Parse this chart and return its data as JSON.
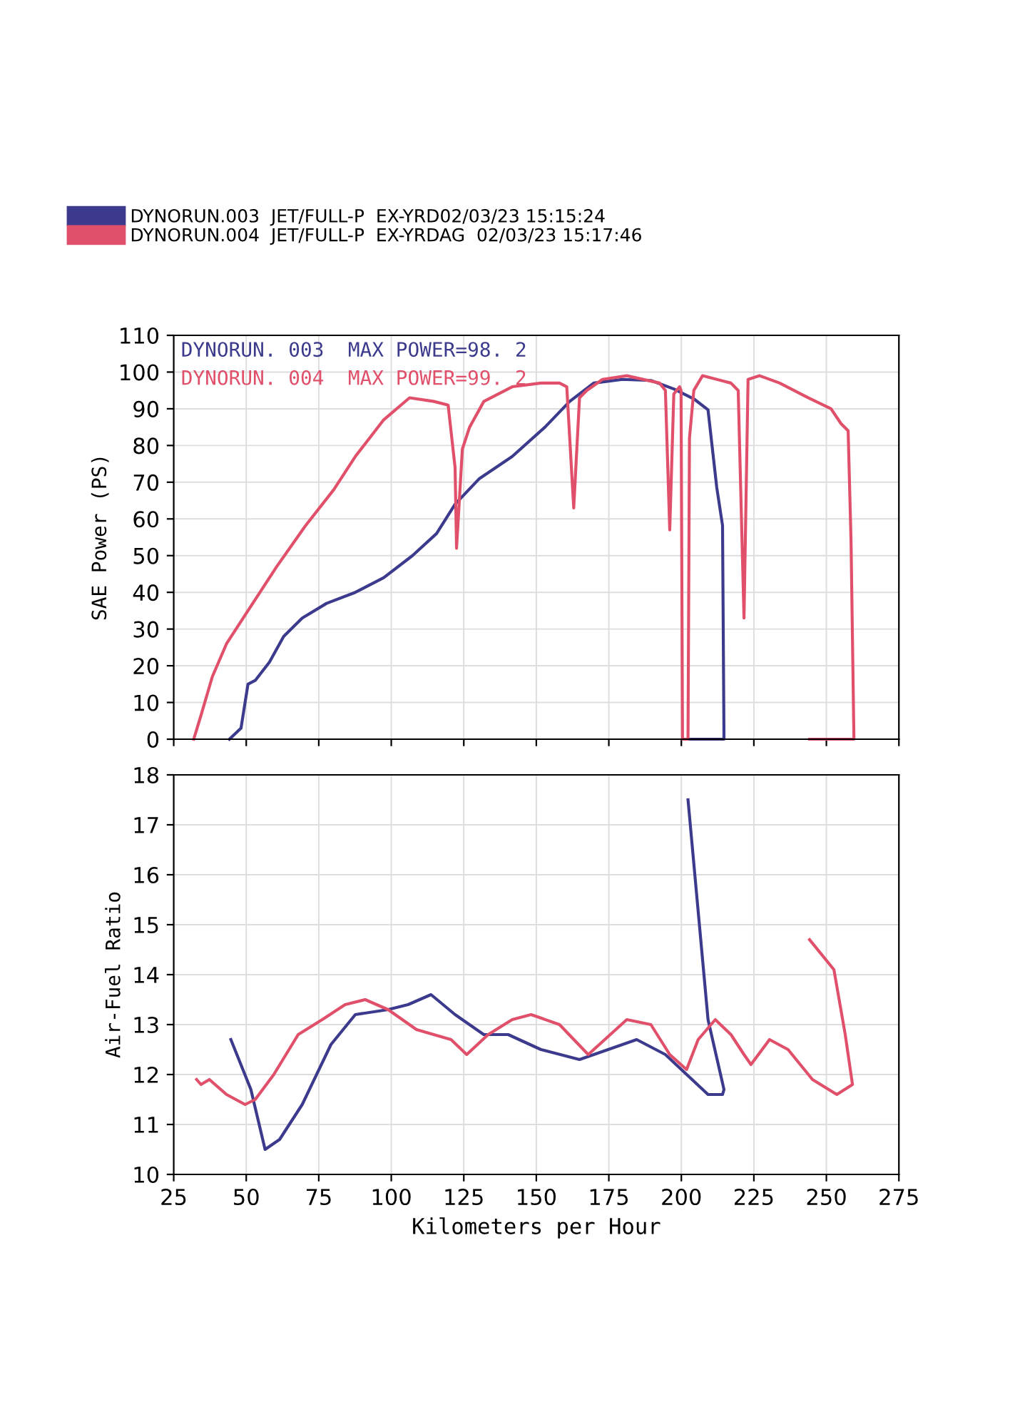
{
  "chart_data": [
    {
      "type": "line",
      "ylabel": "SAE Power (PS)",
      "xlim": [
        25,
        275
      ],
      "xticks": [
        25,
        50,
        75,
        100,
        125,
        150,
        175,
        200,
        225,
        250,
        275
      ],
      "ylim": [
        0,
        110
      ],
      "yticks": [
        0,
        10,
        20,
        30,
        40,
        50,
        60,
        70,
        80,
        90,
        100,
        110
      ],
      "grid": true,
      "legend": "top left",
      "tick_labels": "y",
      "annotations": [
        "DYNORUN. 003  MAX POWER=98. 2",
        "DYNORUN. 004  MAX POWER=99. 2"
      ],
      "series": [
        {
          "name": "DYNORUN.003  JET/FULL-P  EX-YRD02/03/23 15:15:24",
          "color": "#3c3a8c",
          "x": [
            44.2,
            48.2,
            50.6,
            53.1,
            58,
            62.9,
            69.3,
            77.7,
            87.6,
            97.4,
            107.3,
            115.6,
            122,
            130.4,
            141.7,
            153,
            161.5,
            169.8,
            179.7,
            189.5,
            197.4,
            204.3,
            209.2,
            212.2,
            214.2,
            214.7,
            202.3
          ],
          "values": [
            0,
            3,
            15,
            16,
            21,
            28,
            33,
            37,
            40,
            44,
            50,
            56,
            64,
            71,
            77,
            85,
            92,
            97,
            98,
            97.7,
            95.4,
            92.7,
            89.7,
            68.6,
            58.2,
            0,
            0
          ]
        },
        {
          "name": "DYNORUN.004  JET/FULL-P  EX-YRDAG  02/03/23 15:17:46",
          "color": "#e0506a",
          "x": [
            31.9,
            34.4,
            38.3,
            43.2,
            50.6,
            60.5,
            70.3,
            80.2,
            87.6,
            97.4,
            106.3,
            114.7,
            119.6,
            122,
            122.5,
            124.5,
            127,
            131.9,
            141.7,
            151.6,
            158,
            160.5,
            162.9,
            164.9,
            167.4,
            172.8,
            181.2,
            192.5,
            194.5,
            196,
            197.4,
            199.4,
            199.9,
            200.4,
            202.3,
            202.8,
            204.3,
            207.3,
            217.1,
            219.6,
            221.6,
            223,
            227,
            233.9,
            243.7,
            251.6,
            255,
            257.5,
            258.5,
            259.5,
            244.2
          ],
          "values": [
            0,
            6.5,
            17,
            26,
            35,
            47,
            58,
            68,
            77,
            87,
            93,
            92,
            91,
            74,
            52,
            79,
            85,
            92,
            96,
            97,
            97,
            96,
            63,
            93,
            95,
            98,
            99,
            97,
            95,
            57,
            94,
            96,
            95,
            0,
            0,
            82,
            95,
            99,
            97,
            95,
            33,
            98,
            99,
            97,
            93,
            90,
            86,
            84,
            54,
            0,
            0
          ]
        }
      ]
    },
    {
      "type": "line",
      "xlabel": "Kilometers per Hour",
      "ylabel": "Air-Fuel Ratio",
      "xlim": [
        25,
        275
      ],
      "xticks": [
        25,
        50,
        75,
        100,
        125,
        150,
        175,
        200,
        225,
        250,
        275
      ],
      "ylim": [
        10,
        18
      ],
      "yticks": [
        10,
        11,
        12,
        13,
        14,
        15,
        16,
        17,
        18
      ],
      "grid": true,
      "series": [
        {
          "color": "#3c3a8c",
          "x": [
            44.7,
            51.6,
            56.5,
            61.5,
            69.3,
            79.2,
            87.6,
            98.9,
            105.8,
            113.7,
            122,
            131.9,
            140.3,
            151.6,
            164.9,
            184.6,
            194.5,
            209.2,
            214.2,
            214.7,
            209.2,
            202.3
          ],
          "values": [
            12.7,
            11.7,
            10.5,
            10.7,
            11.4,
            12.6,
            13.2,
            13.3,
            13.4,
            13.6,
            13.2,
            12.8,
            12.8,
            12.5,
            12.3,
            12.7,
            12.4,
            11.6,
            11.6,
            11.7,
            13.1,
            17.5
          ]
        },
        {
          "color": "#e0506a",
          "x": [
            32.9,
            34.4,
            37.3,
            43.2,
            49.6,
            53.1,
            59.5,
            67.9,
            76.2,
            84.1,
            91,
            98.9,
            108.7,
            120.6,
            126,
            133.4,
            141.7,
            148.2,
            158,
            167.9,
            181.2,
            189.5,
            196,
            201.8,
            205.8,
            211.7,
            217.1,
            221.6,
            224,
            230.4,
            236.8,
            245.2,
            253.6,
            259,
            256.5,
            252.6,
            244.2
          ],
          "values": [
            11.9,
            11.8,
            11.9,
            11.6,
            11.4,
            11.5,
            12,
            12.8,
            13.1,
            13.4,
            13.5,
            13.3,
            12.9,
            12.7,
            12.4,
            12.8,
            13.1,
            13.2,
            13,
            12.4,
            13.1,
            13,
            12.4,
            12.1,
            12.7,
            13.1,
            12.8,
            12.4,
            12.2,
            12.7,
            12.5,
            11.9,
            11.6,
            11.8,
            12.8,
            14.1,
            14.7
          ]
        }
      ]
    }
  ]
}
